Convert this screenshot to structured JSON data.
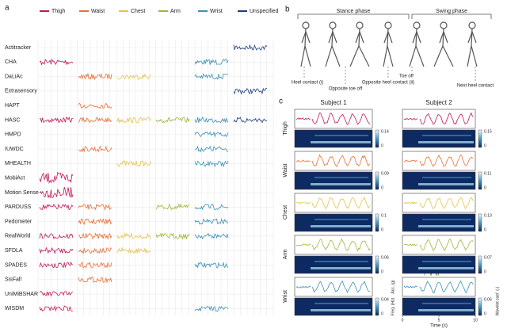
{
  "panel_labels": [
    "a",
    "b",
    "c"
  ],
  "legend": [
    {
      "name": "Thigh",
      "color": "#c2185b"
    },
    {
      "name": "Waist",
      "color": "#e8703a"
    },
    {
      "name": "Chest",
      "color": "#e3c44b"
    },
    {
      "name": "Arm",
      "color": "#9bb83c"
    },
    {
      "name": "Wrist",
      "color": "#3d8fb5"
    },
    {
      "name": "Unspecified",
      "color": "#1f3f7a"
    }
  ],
  "datasets": [
    "Actitracker",
    "CHA",
    "DaLiAc",
    "Extrasensory",
    "HAPT",
    "HASC",
    "HMPD",
    "IUWDC",
    "MHEALTH",
    "MobiAct",
    "Motion Sense",
    "PARDUSS",
    "Pedometer",
    "RealWorld",
    "SFDLA",
    "SPADES",
    "SisFall",
    "UniMiBSHAR",
    "WISDM"
  ],
  "gait": {
    "stance": "Stance phase",
    "swing": "Swing phase",
    "events": [
      "Heel contact (i)",
      "Opposite toe off",
      "Opposite heel contact (ii)",
      "Toe off",
      "Next heel contact"
    ]
  },
  "subjects": [
    "Subject 1",
    "Subject 2"
  ],
  "rows": [
    {
      "name": "Thigh",
      "colorbar_max": [
        0.14,
        0.15
      ]
    },
    {
      "name": "Waist",
      "colorbar_max": [
        0.09,
        0.11
      ]
    },
    {
      "name": "Chest",
      "colorbar_max": [
        0.1,
        0.13
      ]
    },
    {
      "name": "Arm",
      "colorbar_max": [
        0.06,
        0.07
      ]
    },
    {
      "name": "Wrist",
      "colorbar_max": [
        0.04,
        0.06
      ]
    }
  ],
  "axes": {
    "acc": "Acc. (g)",
    "freq": "Freq. (Hz)",
    "time": "Time (s)",
    "coef": "Wavelet coef. (-)",
    "time_ticks": [
      0,
      5,
      10
    ],
    "colorbar_min": 0,
    "markers": [
      "I",
      "II",
      "III"
    ]
  }
}
